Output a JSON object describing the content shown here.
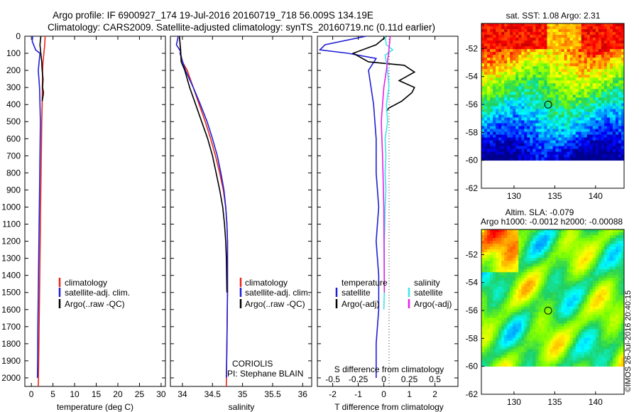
{
  "header": {
    "line1": "Argo profile: IF 6900927_174 19-Jul-2016 20160719_718 56.009S 134.19E",
    "line2": "Climatology: CARS2009. Satellite-adjusted climatology: synTS_20160719.nc (0.11d earlier)"
  },
  "side_label": "©IMOS 26-Jul-2016 20:40:15",
  "colors": {
    "climatology": "#e8241a",
    "satellite": "#1f1fd6",
    "argo": "#000000",
    "salinity_satellite": "#3ee6e6",
    "salinity_argo": "#e81ee8"
  },
  "chart_data": [
    {
      "type": "line",
      "panel": "temperature",
      "xlabel": "temperature (deg C)",
      "xlim": [
        -1.5,
        31
      ],
      "xticks": [
        0,
        5,
        10,
        15,
        20,
        25,
        30
      ],
      "ylim": [
        2050,
        0
      ],
      "yticks": [
        0,
        100,
        200,
        300,
        400,
        500,
        600,
        700,
        800,
        900,
        1000,
        1100,
        1200,
        1300,
        1400,
        1500,
        1600,
        1700,
        1800,
        1900,
        2000
      ],
      "legend": [
        "climatology",
        "satellite-adj. clim.",
        "Argo(..raw -QC)"
      ],
      "series": [
        {
          "name": "climatology",
          "color": "climatology",
          "x": [
            3.2,
            3.1,
            2.9,
            2.7,
            2.6,
            2.55,
            2.5,
            2.4,
            2.3,
            2.2,
            2.1,
            2.0,
            1.9,
            1.8,
            1.7,
            1.6
          ],
          "y": [
            0,
            50,
            100,
            150,
            200,
            300,
            400,
            500,
            700,
            900,
            1100,
            1300,
            1500,
            1700,
            1900,
            2050
          ]
        },
        {
          "name": "satellite-adj. clim.",
          "color": "satellite",
          "x": [
            0.3,
            0.2,
            1.0,
            2.0,
            1.6,
            1.9,
            2.0,
            2.1,
            2.0,
            1.9,
            1.8,
            1.7,
            1.6,
            1.5,
            1.45,
            1.4
          ],
          "y": [
            0,
            30,
            80,
            100,
            200,
            300,
            400,
            500,
            700,
            900,
            1100,
            1300,
            1500,
            1700,
            1900,
            2000
          ]
        },
        {
          "name": "Argo(..raw -QC)",
          "color": "argo",
          "x": [
            2.2,
            2.0,
            2.2,
            2.4,
            2.5,
            2.7,
            2.6,
            2.8,
            2.7,
            2.5
          ],
          "y": [
            0,
            50,
            100,
            150,
            200,
            250,
            300,
            330,
            350,
            380
          ]
        }
      ]
    },
    {
      "type": "line",
      "panel": "salinity",
      "xlabel": "salinity",
      "xlim": [
        33.8,
        36.15
      ],
      "xticks": [
        34,
        34.5,
        35,
        35.5,
        36
      ],
      "ylim": [
        2050,
        0
      ],
      "legend": [
        "climatology",
        "satellite-adj. clim.",
        "Argo(..raw -QC)"
      ],
      "annotation": [
        "CORIOLIS",
        "PI: Stephane BLAIN"
      ],
      "series": [
        {
          "name": "climatology",
          "color": "climatology",
          "x": [
            33.95,
            33.97,
            34.0,
            34.08,
            34.18,
            34.28,
            34.38,
            34.47,
            34.55,
            34.62,
            34.68,
            34.72,
            34.74,
            34.75,
            34.75,
            34.74,
            34.73
          ],
          "y": [
            0,
            100,
            150,
            200,
            300,
            400,
            500,
            600,
            700,
            800,
            900,
            1000,
            1100,
            1200,
            1500,
            1800,
            2050
          ]
        },
        {
          "name": "satellite-adj. clim.",
          "color": "satellite",
          "x": [
            33.93,
            33.9,
            33.97,
            33.96,
            34.05,
            34.18,
            34.3,
            34.41,
            34.5,
            34.58,
            34.64,
            34.69,
            34.72,
            34.74,
            34.75,
            34.75,
            34.74,
            34.73
          ],
          "y": [
            0,
            50,
            90,
            100,
            200,
            300,
            400,
            500,
            600,
            700,
            800,
            900,
            1000,
            1100,
            1200,
            1500,
            1800,
            2000
          ]
        },
        {
          "name": "Argo(..raw -QC)",
          "color": "argo",
          "x": [
            33.95,
            33.97,
            33.98,
            34.04,
            34.12,
            34.22,
            34.32,
            34.42,
            34.5,
            34.56,
            34.62,
            34.67,
            34.7,
            34.72,
            34.73,
            34.74
          ],
          "y": [
            0,
            80,
            150,
            200,
            300,
            400,
            500,
            600,
            700,
            800,
            900,
            1000,
            1100,
            1200,
            1300,
            1500
          ]
        }
      ]
    },
    {
      "type": "line",
      "panel": "difference",
      "xlabel": "T difference from climatology",
      "xlabel2": "S difference from climatology",
      "xlim": [
        -2.6,
        2.9
      ],
      "xticks": [
        -2,
        -1,
        0,
        1,
        2
      ],
      "xticks_s": [
        -0.5,
        -0.25,
        0,
        0.25,
        0.5
      ],
      "xticks_s_text": [
        "-0.5",
        "-0.25",
        "0",
        "0.25",
        "0.5"
      ],
      "ylim": [
        2050,
        0
      ],
      "legend": {
        "temperature_title": "temperature",
        "salinity_title": "salinity",
        "entries": [
          {
            "label": "satellite",
            "color": "satellite"
          },
          {
            "label": "Argo(-adj)",
            "color": "argo"
          },
          {
            "label": "satellite",
            "color": "salinity_satellite"
          },
          {
            "label": "Argo(-adj)",
            "color": "salinity_argo"
          }
        ]
      },
      "series": [
        {
          "name": "temperature satellite",
          "color": "satellite",
          "x": [
            -0.7,
            -2.3,
            -2.5,
            -1.4,
            -0.3,
            -0.6,
            -0.5,
            -0.4,
            -0.35,
            -0.3,
            -0.3,
            -0.2,
            -0.3,
            -0.2,
            -0.2,
            -0.3,
            -0.3
          ],
          "y": [
            0,
            50,
            80,
            100,
            130,
            200,
            300,
            400,
            500,
            600,
            800,
            1000,
            1200,
            1400,
            1600,
            1800,
            2000
          ]
        },
        {
          "name": "temperature Argo",
          "color": "argo",
          "x": [
            0.1,
            -0.3,
            -1.2,
            -0.6,
            0.8,
            1.2,
            0.6,
            1.2,
            1.1,
            0.7,
            0.2,
            0.1
          ],
          "y": [
            0,
            50,
            100,
            150,
            170,
            210,
            260,
            300,
            330,
            380,
            420,
            440
          ]
        },
        {
          "name": "salinity satellite",
          "color": "salinity_satellite",
          "x": [
            0.05,
            0.1,
            0.35,
            0.05,
            0.15,
            0.2,
            0.1,
            0.15,
            0.05,
            0.08,
            0.05,
            0.08,
            0.05,
            0.04,
            0.02,
            0.02,
            0.0
          ],
          "y": [
            0,
            50,
            80,
            110,
            200,
            300,
            400,
            500,
            600,
            700,
            800,
            900,
            1000,
            1100,
            1200,
            1500,
            1600
          ]
        },
        {
          "name": "salinity Argo",
          "color": "salinity_argo",
          "x": [
            0.25,
            0.2,
            0.1,
            0.0,
            -0.05,
            -0.1,
            -0.05,
            0.0,
            0.02
          ],
          "y": [
            0,
            80,
            200,
            300,
            400,
            500,
            700,
            1000,
            1500
          ]
        }
      ]
    },
    {
      "type": "heatmap",
      "panel": "sst_map",
      "title": "sat. SST: 1.08 Argo: 2.31",
      "xlim": [
        126,
        143.5
      ],
      "ylim": [
        -62,
        -50.2
      ],
      "xticks": [
        130,
        135,
        140
      ],
      "yticks": [
        -52,
        -54,
        -56,
        -58,
        -60,
        -62
      ],
      "marker": {
        "lon": 134.19,
        "lat": -56.009
      }
    },
    {
      "type": "heatmap",
      "panel": "sla_map",
      "title": "Altim. SLA: -0.079",
      "subtitle": "Argo h1000: -0.0012 h2000: -0.00088",
      "xlim": [
        126,
        143.5
      ],
      "ylim": [
        -62,
        -50.2
      ],
      "xticks": [
        130,
        135,
        140
      ],
      "yticks": [
        -52,
        -54,
        -56,
        -58,
        -60,
        -62
      ],
      "marker": {
        "lon": 134.19,
        "lat": -56.009
      }
    }
  ]
}
